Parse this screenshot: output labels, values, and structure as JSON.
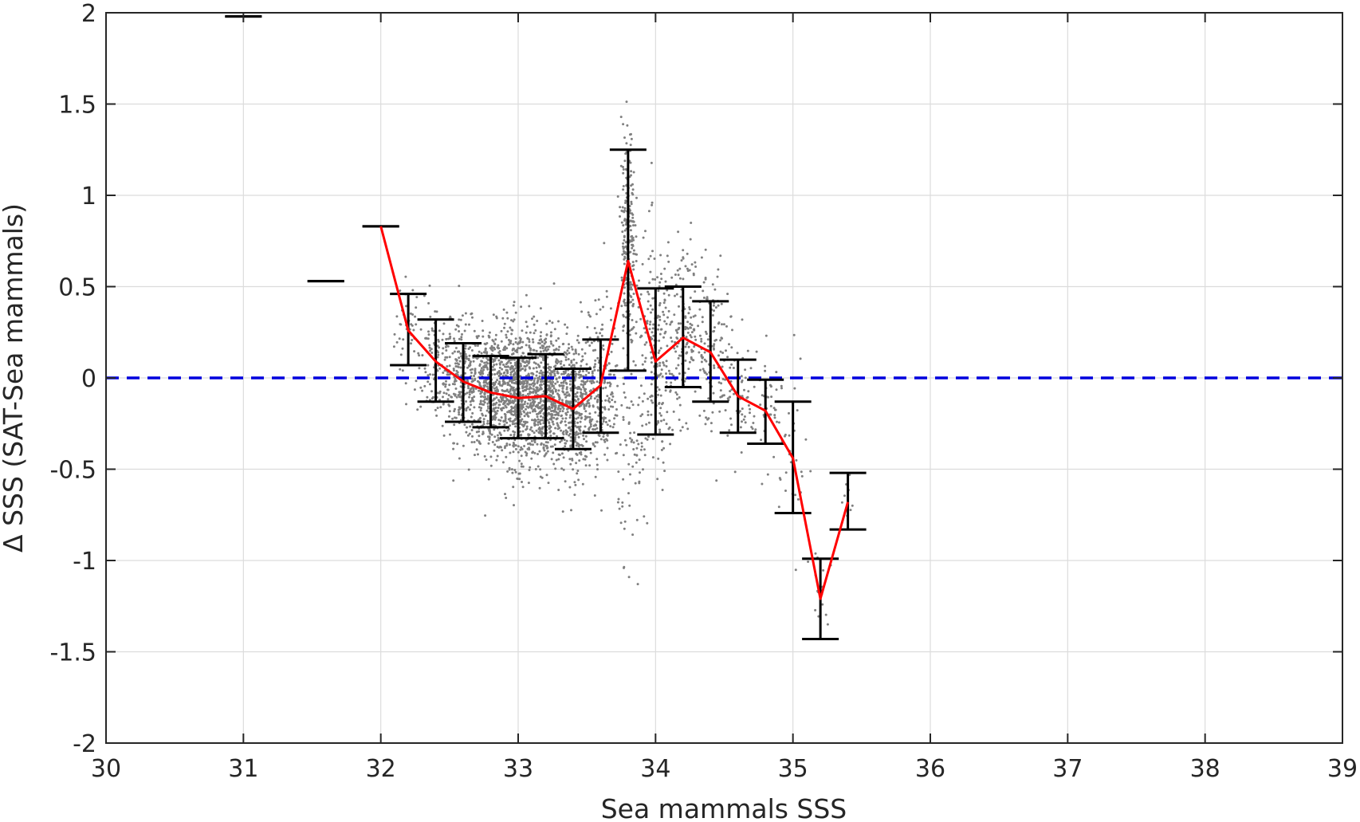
{
  "chart_data": {
    "type": "scatter",
    "xlabel": "Sea mammals SSS",
    "ylabel": "Δ SSS (SAT-Sea mammals)",
    "xlim": [
      30,
      39
    ],
    "ylim": [
      -2,
      2
    ],
    "xticks": [
      30,
      31,
      32,
      33,
      34,
      35,
      36,
      37,
      38,
      39
    ],
    "yticks": [
      2,
      1.5,
      1,
      0.5,
      0,
      -0.5,
      -1,
      -1.5,
      -2
    ],
    "xtick_labels": [
      "30",
      "31",
      "32",
      "33",
      "34",
      "35",
      "36",
      "37",
      "38",
      "39"
    ],
    "ytick_labels": [
      "2",
      "1.5",
      "1",
      "0.5",
      "0",
      "-0.5",
      "-1",
      "-1.5",
      "-2"
    ],
    "grid": true,
    "zero_line": {
      "y": 0,
      "style": "dashed",
      "color": "#0000dd"
    },
    "binned_mean": {
      "color": "#ff0000",
      "x": [
        32.0,
        32.2,
        32.4,
        32.6,
        32.8,
        33.0,
        33.2,
        33.4,
        33.6,
        33.8,
        34.0,
        34.2,
        34.4,
        34.6,
        34.8,
        35.0,
        35.2,
        35.4
      ],
      "y": [
        0.83,
        0.26,
        0.09,
        -0.02,
        -0.08,
        -0.11,
        -0.1,
        -0.17,
        -0.04,
        0.64,
        0.09,
        0.22,
        0.14,
        -0.1,
        -0.18,
        -0.44,
        -1.21,
        -0.68
      ]
    },
    "error_bars": {
      "color": "#000000",
      "bars": [
        {
          "x": 31.0,
          "low": 1.98,
          "high": 1.98
        },
        {
          "x": 31.6,
          "low": 0.53,
          "high": 0.53
        },
        {
          "x": 32.0,
          "low": 0.83,
          "high": 0.83
        },
        {
          "x": 32.2,
          "low": 0.07,
          "high": 0.46
        },
        {
          "x": 32.4,
          "low": -0.13,
          "high": 0.32
        },
        {
          "x": 32.6,
          "low": -0.24,
          "high": 0.19
        },
        {
          "x": 32.8,
          "low": -0.27,
          "high": 0.12
        },
        {
          "x": 33.0,
          "low": -0.33,
          "high": 0.11
        },
        {
          "x": 33.2,
          "low": -0.33,
          "high": 0.13
        },
        {
          "x": 33.4,
          "low": -0.39,
          "high": 0.05
        },
        {
          "x": 33.6,
          "low": -0.3,
          "high": 0.21
        },
        {
          "x": 33.8,
          "low": 0.04,
          "high": 1.25
        },
        {
          "x": 34.0,
          "low": -0.31,
          "high": 0.49
        },
        {
          "x": 34.2,
          "low": -0.05,
          "high": 0.5
        },
        {
          "x": 34.4,
          "low": -0.13,
          "high": 0.42
        },
        {
          "x": 34.6,
          "low": -0.3,
          "high": 0.1
        },
        {
          "x": 34.8,
          "low": -0.36,
          "high": -0.01
        },
        {
          "x": 35.0,
          "low": -0.74,
          "high": -0.13
        },
        {
          "x": 35.2,
          "low": -1.43,
          "high": -0.99
        },
        {
          "x": 35.4,
          "low": -0.83,
          "high": -0.52
        }
      ]
    },
    "scatter": {
      "color": "#808080",
      "clusters": [
        {
          "x": 32.2,
          "y": 0.25,
          "sx": 0.05,
          "sy": 0.15,
          "n": 40
        },
        {
          "x": 32.4,
          "y": 0.08,
          "sx": 0.07,
          "sy": 0.17,
          "n": 120
        },
        {
          "x": 32.6,
          "y": -0.02,
          "sx": 0.07,
          "sy": 0.16,
          "n": 260
        },
        {
          "x": 32.8,
          "y": -0.07,
          "sx": 0.07,
          "sy": 0.17,
          "n": 420
        },
        {
          "x": 33.0,
          "y": -0.1,
          "sx": 0.07,
          "sy": 0.19,
          "n": 560
        },
        {
          "x": 33.2,
          "y": -0.09,
          "sx": 0.07,
          "sy": 0.19,
          "n": 520
        },
        {
          "x": 33.4,
          "y": -0.16,
          "sx": 0.07,
          "sy": 0.19,
          "n": 360
        },
        {
          "x": 33.6,
          "y": -0.05,
          "sx": 0.07,
          "sy": 0.22,
          "n": 220
        },
        {
          "x": 33.8,
          "y": 0.7,
          "sx": 0.025,
          "sy": 0.33,
          "n": 260
        },
        {
          "x": 33.85,
          "y": -0.45,
          "sx": 0.06,
          "sy": 0.25,
          "n": 60
        },
        {
          "x": 34.0,
          "y": 0.12,
          "sx": 0.07,
          "sy": 0.32,
          "n": 200
        },
        {
          "x": 34.2,
          "y": 0.24,
          "sx": 0.07,
          "sy": 0.22,
          "n": 160
        },
        {
          "x": 34.4,
          "y": 0.15,
          "sx": 0.07,
          "sy": 0.22,
          "n": 110
        },
        {
          "x": 34.6,
          "y": -0.08,
          "sx": 0.07,
          "sy": 0.18,
          "n": 70
        },
        {
          "x": 34.8,
          "y": -0.16,
          "sx": 0.06,
          "sy": 0.15,
          "n": 45
        },
        {
          "x": 35.0,
          "y": -0.45,
          "sx": 0.05,
          "sy": 0.25,
          "n": 30
        },
        {
          "x": 35.2,
          "y": -1.15,
          "sx": 0.04,
          "sy": 0.12,
          "n": 15
        },
        {
          "x": 35.4,
          "y": -0.66,
          "sx": 0.03,
          "sy": 0.1,
          "n": 8
        }
      ]
    }
  }
}
